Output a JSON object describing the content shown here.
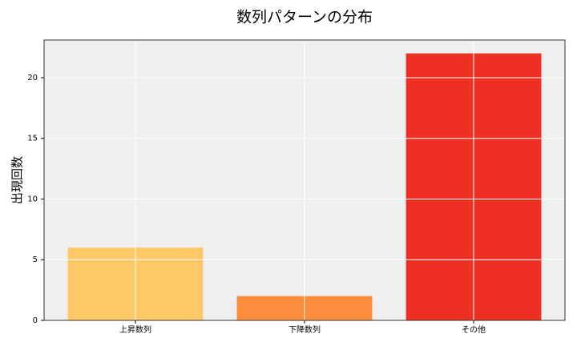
{
  "chart_data": {
    "type": "bar",
    "title": "数列パターンの分布",
    "y_label": "出現回数",
    "categories": [
      "上昇数列",
      "下降数列",
      "その他"
    ],
    "values": [
      6,
      2,
      22
    ],
    "colors": [
      "#fec966",
      "#fd8d3c",
      "#ee3024"
    ],
    "ylim": [
      0,
      23.1
    ],
    "yticks": [
      0,
      5,
      10,
      15,
      20
    ],
    "grid": true
  }
}
